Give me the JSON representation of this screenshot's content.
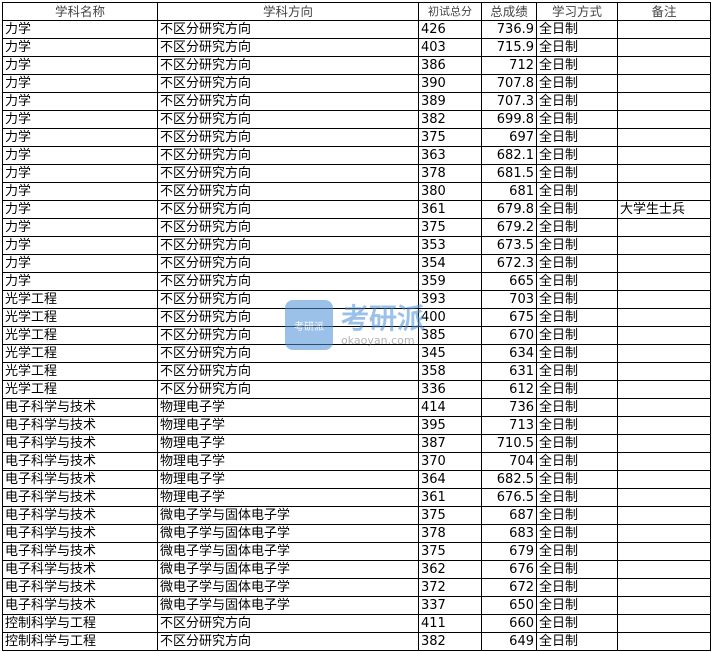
{
  "headers": [
    "学科名称",
    "学科方向",
    "初试总分",
    "总成绩",
    "学习方式",
    "备注"
  ],
  "rows": [
    [
      "力学",
      "不区分研究方向",
      "426",
      "736.9",
      "全日制",
      ""
    ],
    [
      "力学",
      "不区分研究方向",
      "403",
      "715.9",
      "全日制",
      ""
    ],
    [
      "力学",
      "不区分研究方向",
      "386",
      "712",
      "全日制",
      ""
    ],
    [
      "力学",
      "不区分研究方向",
      "390",
      "707.8",
      "全日制",
      ""
    ],
    [
      "力学",
      "不区分研究方向",
      "389",
      "707.3",
      "全日制",
      ""
    ],
    [
      "力学",
      "不区分研究方向",
      "382",
      "699.8",
      "全日制",
      ""
    ],
    [
      "力学",
      "不区分研究方向",
      "375",
      "697",
      "全日制",
      ""
    ],
    [
      "力学",
      "不区分研究方向",
      "363",
      "682.1",
      "全日制",
      ""
    ],
    [
      "力学",
      "不区分研究方向",
      "378",
      "681.5",
      "全日制",
      ""
    ],
    [
      "力学",
      "不区分研究方向",
      "380",
      "681",
      "全日制",
      ""
    ],
    [
      "力学",
      "不区分研究方向",
      "361",
      "679.8",
      "全日制",
      "大学生士兵"
    ],
    [
      "力学",
      "不区分研究方向",
      "375",
      "679.2",
      "全日制",
      ""
    ],
    [
      "力学",
      "不区分研究方向",
      "353",
      "673.5",
      "全日制",
      ""
    ],
    [
      "力学",
      "不区分研究方向",
      "354",
      "672.3",
      "全日制",
      ""
    ],
    [
      "力学",
      "不区分研究方向",
      "359",
      "665",
      "全日制",
      ""
    ],
    [
      "光学工程",
      "不区分研究方向",
      "393",
      "703",
      "全日制",
      ""
    ],
    [
      "光学工程",
      "不区分研究方向",
      "400",
      "675",
      "全日制",
      ""
    ],
    [
      "光学工程",
      "不区分研究方向",
      "385",
      "670",
      "全日制",
      ""
    ],
    [
      "光学工程",
      "不区分研究方向",
      "345",
      "634",
      "全日制",
      ""
    ],
    [
      "光学工程",
      "不区分研究方向",
      "358",
      "631",
      "全日制",
      ""
    ],
    [
      "光学工程",
      "不区分研究方向",
      "336",
      "612",
      "全日制",
      ""
    ],
    [
      "电子科学与技术",
      "物理电子学",
      "414",
      "736",
      "全日制",
      ""
    ],
    [
      "电子科学与技术",
      "物理电子学",
      "395",
      "713",
      "全日制",
      ""
    ],
    [
      "电子科学与技术",
      "物理电子学",
      "387",
      "710.5",
      "全日制",
      ""
    ],
    [
      "电子科学与技术",
      "物理电子学",
      "370",
      "704",
      "全日制",
      ""
    ],
    [
      "电子科学与技术",
      "物理电子学",
      "364",
      "682.5",
      "全日制",
      ""
    ],
    [
      "电子科学与技术",
      "物理电子学",
      "361",
      "676.5",
      "全日制",
      ""
    ],
    [
      "电子科学与技术",
      "微电子学与固体电子学",
      "375",
      "687",
      "全日制",
      ""
    ],
    [
      "电子科学与技术",
      "微电子学与固体电子学",
      "378",
      "683",
      "全日制",
      ""
    ],
    [
      "电子科学与技术",
      "微电子学与固体电子学",
      "375",
      "679",
      "全日制",
      ""
    ],
    [
      "电子科学与技术",
      "微电子学与固体电子学",
      "362",
      "676",
      "全日制",
      ""
    ],
    [
      "电子科学与技术",
      "微电子学与固体电子学",
      "372",
      "672",
      "全日制",
      ""
    ],
    [
      "电子科学与技术",
      "微电子学与固体电子学",
      "337",
      "650",
      "全日制",
      ""
    ],
    [
      "控制科学与工程",
      "不区分研究方向",
      "411",
      "660",
      "全日制",
      ""
    ],
    [
      "控制科学与工程",
      "不区分研究方向",
      "382",
      "649",
      "全日制",
      ""
    ]
  ],
  "watermark": {
    "logo_text": "考研派",
    "title": "考研派",
    "url": "okaoyan.com"
  }
}
